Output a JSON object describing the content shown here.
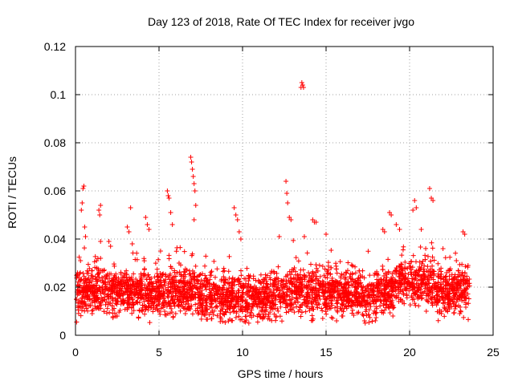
{
  "chart_data": {
    "type": "scatter",
    "title": "Day 123 of 2018, Rate Of TEC Index for receiver jvgo",
    "xlabel": "GPS time / hours",
    "ylabel": "ROTI / TECUs",
    "xlim": [
      0,
      25
    ],
    "ylim": [
      0,
      0.12
    ],
    "x_ticks": [
      "0",
      "5",
      "10",
      "15",
      "20",
      "25"
    ],
    "y_ticks": [
      "0",
      "0.02",
      "0.04",
      "0.06",
      "0.08",
      "0.1",
      "0.12"
    ],
    "grid": true,
    "marker": "+",
    "color": "#ff0000",
    "series": [
      {
        "name": "ROTI",
        "description": "dense band of points mostly between 0.01 and 0.03 TECU/s across 0-23.6 h",
        "points": [
          [
            0.1,
            0.018
          ],
          [
            0.2,
            0.024
          ],
          [
            0.3,
            0.031
          ],
          [
            0.35,
            0.052
          ],
          [
            0.4,
            0.055
          ],
          [
            0.45,
            0.061
          ],
          [
            0.5,
            0.062
          ],
          [
            0.55,
            0.045
          ],
          [
            0.6,
            0.041
          ],
          [
            1.4,
            0.052
          ],
          [
            1.45,
            0.05
          ],
          [
            1.5,
            0.054
          ],
          [
            1.5,
            0.039
          ],
          [
            2.0,
            0.039
          ],
          [
            2.1,
            0.037
          ],
          [
            3.1,
            0.045
          ],
          [
            3.2,
            0.043
          ],
          [
            3.3,
            0.053
          ],
          [
            3.4,
            0.038
          ],
          [
            4.2,
            0.049
          ],
          [
            4.3,
            0.046
          ],
          [
            4.4,
            0.044
          ],
          [
            5.5,
            0.06
          ],
          [
            5.55,
            0.058
          ],
          [
            5.6,
            0.057
          ],
          [
            5.7,
            0.051
          ],
          [
            5.8,
            0.046
          ],
          [
            6.2,
            0.03
          ],
          [
            6.9,
            0.074
          ],
          [
            6.95,
            0.072
          ],
          [
            7.0,
            0.069
          ],
          [
            7.05,
            0.066
          ],
          [
            7.1,
            0.063
          ],
          [
            7.15,
            0.06
          ],
          [
            7.2,
            0.054
          ],
          [
            7.1,
            0.048
          ],
          [
            9.5,
            0.053
          ],
          [
            9.6,
            0.05
          ],
          [
            9.7,
            0.048
          ],
          [
            9.8,
            0.043
          ],
          [
            9.9,
            0.04
          ],
          [
            12.2,
            0.041
          ],
          [
            12.6,
            0.064
          ],
          [
            12.65,
            0.059
          ],
          [
            12.7,
            0.055
          ],
          [
            12.8,
            0.049
          ],
          [
            12.9,
            0.048
          ],
          [
            13.5,
            0.103
          ],
          [
            13.55,
            0.105
          ],
          [
            13.6,
            0.104
          ],
          [
            13.65,
            0.103
          ],
          [
            13.7,
            0.041
          ],
          [
            14.2,
            0.048
          ],
          [
            14.3,
            0.047
          ],
          [
            14.4,
            0.047
          ],
          [
            15.0,
            0.042
          ],
          [
            18.4,
            0.044
          ],
          [
            18.5,
            0.043
          ],
          [
            18.8,
            0.051
          ],
          [
            18.9,
            0.05
          ],
          [
            19.2,
            0.046
          ],
          [
            19.4,
            0.044
          ],
          [
            20.2,
            0.052
          ],
          [
            20.3,
            0.056
          ],
          [
            20.4,
            0.053
          ],
          [
            20.7,
            0.044
          ],
          [
            21.2,
            0.061
          ],
          [
            21.3,
            0.057
          ],
          [
            21.4,
            0.056
          ],
          [
            22.0,
            0.036
          ],
          [
            22.8,
            0.031
          ],
          [
            23.2,
            0.043
          ],
          [
            23.3,
            0.042
          ],
          [
            23.5,
            0.029
          ],
          [
            1.0,
            0.009
          ],
          [
            2.5,
            0.008
          ],
          [
            4.0,
            0.01
          ],
          [
            6.0,
            0.009
          ],
          [
            8.2,
            0.01
          ],
          [
            10.5,
            0.009
          ],
          [
            12.0,
            0.008
          ],
          [
            14.8,
            0.007
          ],
          [
            16.0,
            0.008
          ],
          [
            17.3,
            0.006
          ],
          [
            19.0,
            0.008
          ],
          [
            21.0,
            0.01
          ],
          [
            23.0,
            0.009
          ]
        ]
      }
    ]
  }
}
